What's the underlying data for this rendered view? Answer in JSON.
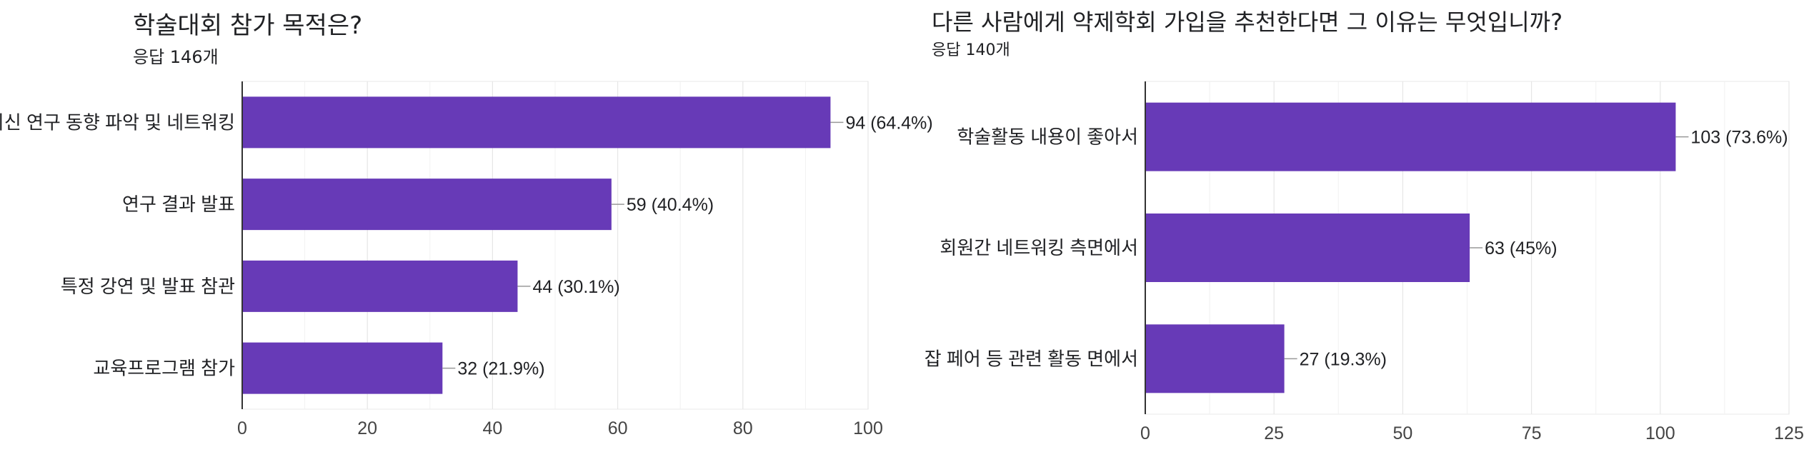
{
  "chart_data": [
    {
      "type": "bar",
      "orientation": "horizontal",
      "title": "학술대회 참가 목적은?",
      "subtitle": "응답 146개",
      "categories": [
        "최신 연구 동향 파악 및 네트워킹",
        "연구 결과 발표",
        "특정 강연 및 발표 참관",
        "교육프로그램 참가"
      ],
      "values": [
        94,
        59,
        44,
        32
      ],
      "data_labels": [
        "94 (64.4%)",
        "59 (40.4%)",
        "44 (30.1%)",
        "32 (21.9%)"
      ],
      "xlim": [
        0,
        100
      ],
      "xticks": [
        0,
        20,
        40,
        60,
        80,
        100
      ],
      "grid": true,
      "color": "#673ab7"
    },
    {
      "type": "bar",
      "orientation": "horizontal",
      "title": "다른 사람에게 약제학회 가입을 추천한다면 그 이유는 무엇입니까?",
      "subtitle": "응답 140개",
      "categories": [
        "학술활동 내용이 좋아서",
        "회원간 네트워킹 측면에서",
        "잡 페어 등 관련 활동 면에서"
      ],
      "values": [
        103,
        63,
        27
      ],
      "data_labels": [
        "103 (73.6%)",
        "63 (45%)",
        "27 (19.3%)"
      ],
      "xlim": [
        0,
        125
      ],
      "xticks": [
        0,
        25,
        50,
        75,
        100,
        125
      ],
      "grid": true,
      "color": "#673ab7"
    }
  ]
}
